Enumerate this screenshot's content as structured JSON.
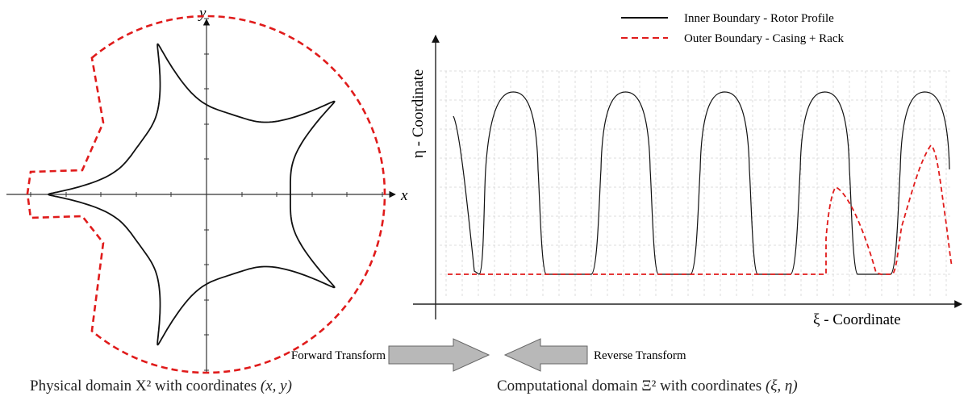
{
  "physical": {
    "x_label": "x",
    "y_label": "y",
    "lobes": 5,
    "colors": {
      "rotor": "#111111",
      "casing": "#e01b1b",
      "axes": "#333333"
    }
  },
  "computational": {
    "y_axis_label": "η - Coordinate",
    "x_axis_label": "ξ  - Coordinate",
    "legend": {
      "inner_label": "Inner Boundary - Rotor Profile",
      "outer_label": "Outer Boundary - Casing + Rack",
      "inner_style": "solid black",
      "outer_style": "dashed red"
    },
    "grid": true,
    "lobe_count": 5
  },
  "transforms": {
    "forward_label": "Forward Transform",
    "reverse_label": "Reverse Transform",
    "arrow_color": "#b8b8b8"
  },
  "captions": {
    "left_text": "Physical domain X² with coordinates ",
    "left_math": "(x, y)",
    "right_text": "Computational domain Ξ² with coordinates ",
    "right_math": "(ξ, η)"
  }
}
